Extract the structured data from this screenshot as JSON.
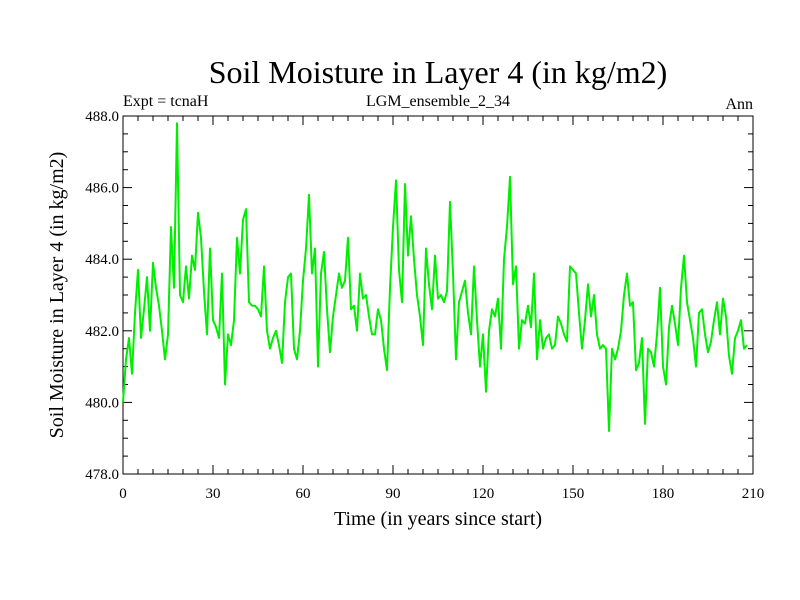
{
  "chart_data": {
    "type": "line",
    "title": "Soil Moisture in Layer 4 (in kg/m2)",
    "subtitle_left": "Expt = tcnaH",
    "subtitle_center": "LGM_ensemble_2_34",
    "subtitle_right": "Ann",
    "xlabel": "Time (in years since start)",
    "ylabel": "Soil Moisture in Layer 4 (in kg/m2)",
    "xlim": [
      0,
      210
    ],
    "ylim": [
      478,
      488
    ],
    "x_ticks": [
      0,
      30,
      60,
      90,
      120,
      150,
      180,
      210
    ],
    "x_tick_labels": [
      "0",
      "30",
      "60",
      "90",
      "120",
      "150",
      "180",
      "210"
    ],
    "y_ticks": [
      478,
      480,
      482,
      484,
      486,
      488
    ],
    "y_tick_labels": [
      "478.0",
      "480.0",
      "482.0",
      "484.0",
      "486.0",
      "488.0"
    ],
    "grid": false,
    "series": [
      {
        "name": "Soil Moisture",
        "color": "#00ee00",
        "x_start": 0,
        "x_step": 1,
        "values": [
          480.0,
          481.2,
          481.8,
          480.8,
          482.5,
          483.7,
          481.8,
          482.6,
          483.5,
          482.0,
          483.9,
          483.2,
          482.7,
          482.0,
          481.2,
          481.9,
          484.9,
          483.2,
          487.8,
          483.0,
          482.8,
          483.8,
          482.9,
          484.1,
          483.7,
          485.3,
          484.6,
          483.1,
          481.9,
          484.3,
          482.3,
          482.1,
          481.8,
          483.6,
          480.5,
          481.9,
          481.6,
          482.3,
          484.6,
          483.6,
          485.1,
          485.4,
          482.8,
          482.7,
          482.7,
          482.6,
          482.4,
          483.8,
          482.0,
          481.5,
          481.8,
          482.0,
          481.6,
          481.1,
          482.8,
          483.5,
          483.6,
          481.5,
          481.2,
          482.0,
          483.4,
          484.3,
          485.8,
          483.6,
          484.3,
          481.0,
          483.6,
          484.2,
          482.6,
          481.4,
          482.4,
          483.0,
          483.6,
          483.2,
          483.4,
          484.6,
          482.6,
          482.7,
          482.0,
          483.6,
          482.9,
          483.0,
          482.4,
          481.9,
          481.9,
          482.6,
          482.3,
          481.5,
          480.9,
          483.2,
          484.9,
          486.2,
          483.7,
          482.8,
          486.1,
          484.1,
          485.2,
          484.0,
          483.0,
          482.4,
          481.6,
          484.3,
          483.3,
          482.6,
          484.1,
          482.9,
          483.0,
          482.8,
          483.1,
          485.6,
          483.6,
          481.2,
          482.8,
          483.1,
          483.4,
          482.5,
          481.9,
          483.8,
          482.3,
          481.0,
          481.9,
          480.3,
          482.0,
          482.6,
          482.4,
          482.9,
          481.5,
          484.0,
          484.9,
          486.3,
          483.3,
          483.8,
          481.5,
          482.3,
          482.2,
          482.7,
          482.1,
          483.6,
          481.2,
          482.3,
          481.5,
          481.8,
          481.9,
          481.5,
          481.6,
          482.4,
          482.2,
          481.9,
          481.7,
          483.8,
          483.7,
          483.6,
          482.5,
          481.5,
          482.3,
          483.3,
          482.4,
          483.0,
          481.9,
          481.5,
          481.6,
          481.5,
          479.2,
          481.5,
          481.2,
          481.5,
          482.0,
          483.0,
          483.6,
          482.7,
          482.8,
          480.9,
          481.1,
          481.8,
          479.4,
          481.5,
          481.4,
          481.0,
          481.9,
          483.2,
          481.0,
          480.5,
          482.1,
          482.7,
          482.2,
          481.6,
          483.2,
          484.1,
          482.8,
          482.3,
          481.8,
          481.0,
          482.5,
          482.6,
          481.9,
          481.4,
          481.7,
          482.3,
          482.8,
          481.9,
          482.9,
          482.4,
          481.3,
          480.8,
          481.8,
          482.0,
          482.3,
          481.5,
          481.6
        ]
      }
    ]
  }
}
